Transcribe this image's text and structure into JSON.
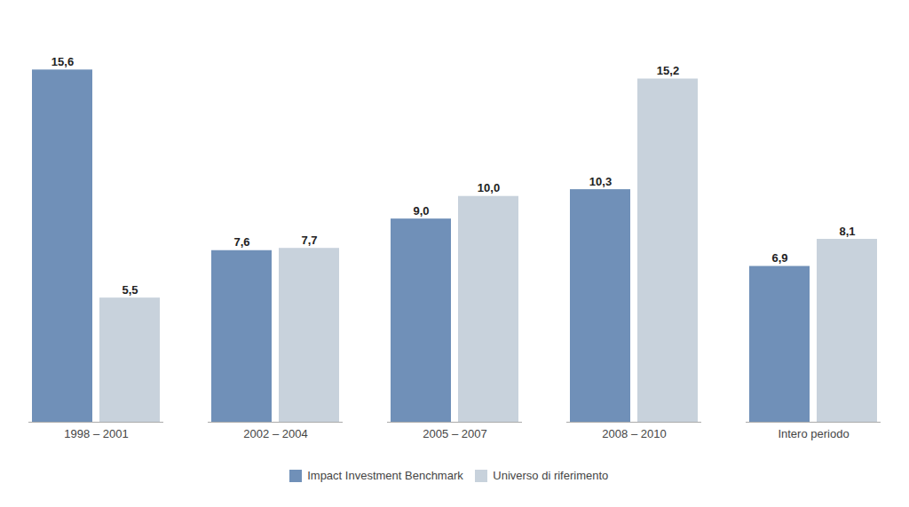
{
  "chart_data": {
    "type": "bar",
    "categories": [
      "1998 – 2001",
      "2002 – 2004",
      "2005 – 2007",
      "2008 – 2010",
      "Intero periodo"
    ],
    "series": [
      {
        "name": "Impact Investment Benchmark",
        "color": "#7090b8",
        "values": [
          15.6,
          7.6,
          9.0,
          10.3,
          6.9
        ],
        "value_labels": [
          "15,6",
          "7,6",
          "9,0",
          "10,3",
          "6,9"
        ]
      },
      {
        "name": "Universo di riferimento",
        "color": "#c8d2dc",
        "values": [
          5.5,
          7.7,
          10.0,
          15.2,
          8.1
        ],
        "value_labels": [
          "5,5",
          "7,7",
          "10,0",
          "15,2",
          "8,1"
        ]
      }
    ],
    "ylim": [
      0,
      17.5
    ],
    "grid": false,
    "legend": "bottom",
    "data_labels": true,
    "tick_labels": "x"
  }
}
